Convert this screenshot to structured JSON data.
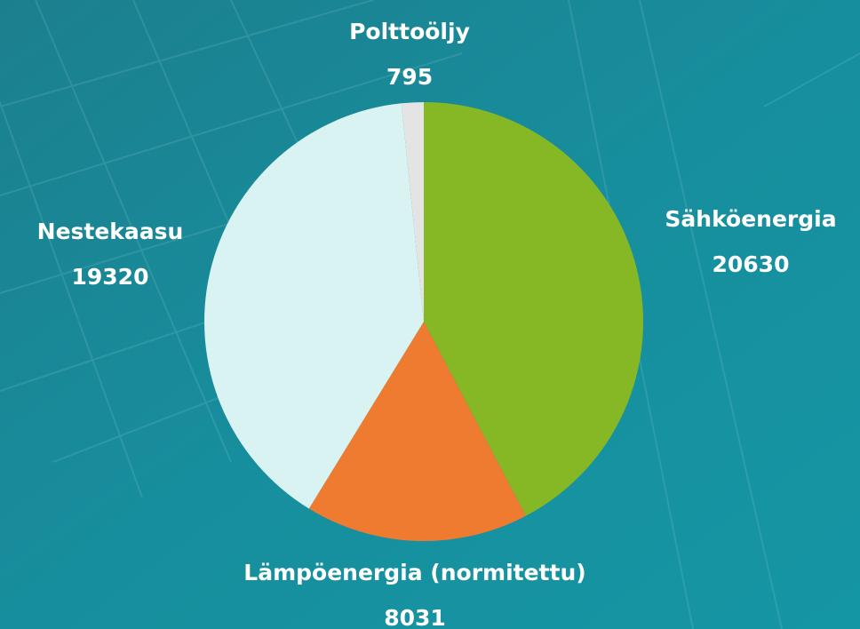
{
  "chart_data": {
    "type": "pie",
    "categories": [
      "Sähköenergia",
      "Lämpöenergia (normitettu)",
      "Nestekaasu",
      "Polttoöljy"
    ],
    "values": [
      20630,
      8031,
      19320,
      795
    ],
    "colors": [
      "#86b825",
      "#ef7b30",
      "#d9f3f2",
      "#e4e4e4"
    ]
  }
}
